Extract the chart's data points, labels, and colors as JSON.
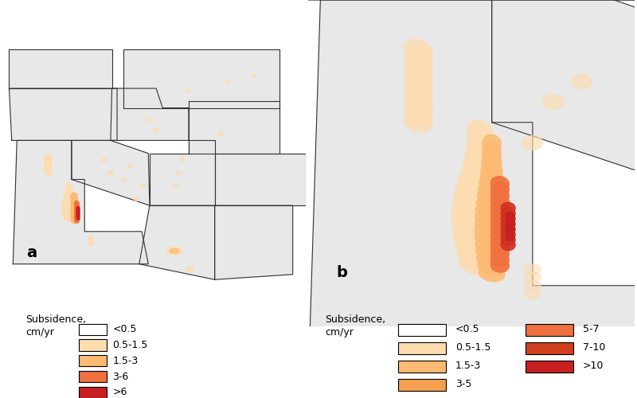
{
  "fig_width": 8.0,
  "fig_height": 5.0,
  "bg_color": "#E8E8E8",
  "map_bg": "#DCDCDC",
  "state_edge_color": "#333333",
  "state_lw": 0.8,
  "panel_a_label": "a",
  "panel_b_label": "b",
  "legend_title_a": "Subsidence,\ncm/yr",
  "legend_title_b": "Subsidence,\ncm/yr",
  "legend_colors_a": [
    "#FFFFFF",
    "#FDDCB0",
    "#FDBA72",
    "#F07040",
    "#C82020"
  ],
  "legend_labels_a": [
    "<0.5",
    "0.5-1.5",
    "1.5-3",
    "3-6",
    ">6"
  ],
  "legend_colors_b": [
    "#FFFFFF",
    "#FDDCB0",
    "#FDBA72",
    "#F5A050",
    "#F07040",
    "#D04020",
    "#C82020"
  ],
  "legend_labels_b": [
    "<0.5",
    "0.5-1.5",
    "1.5-3",
    "3-5",
    "5-7",
    "7-10",
    ">10"
  ],
  "subsidence_color_light": "#FDDCB0",
  "subsidence_color_mid": "#FDBA72",
  "subsidence_color_dark": "#F07040",
  "subsidence_color_red": "#C82020"
}
